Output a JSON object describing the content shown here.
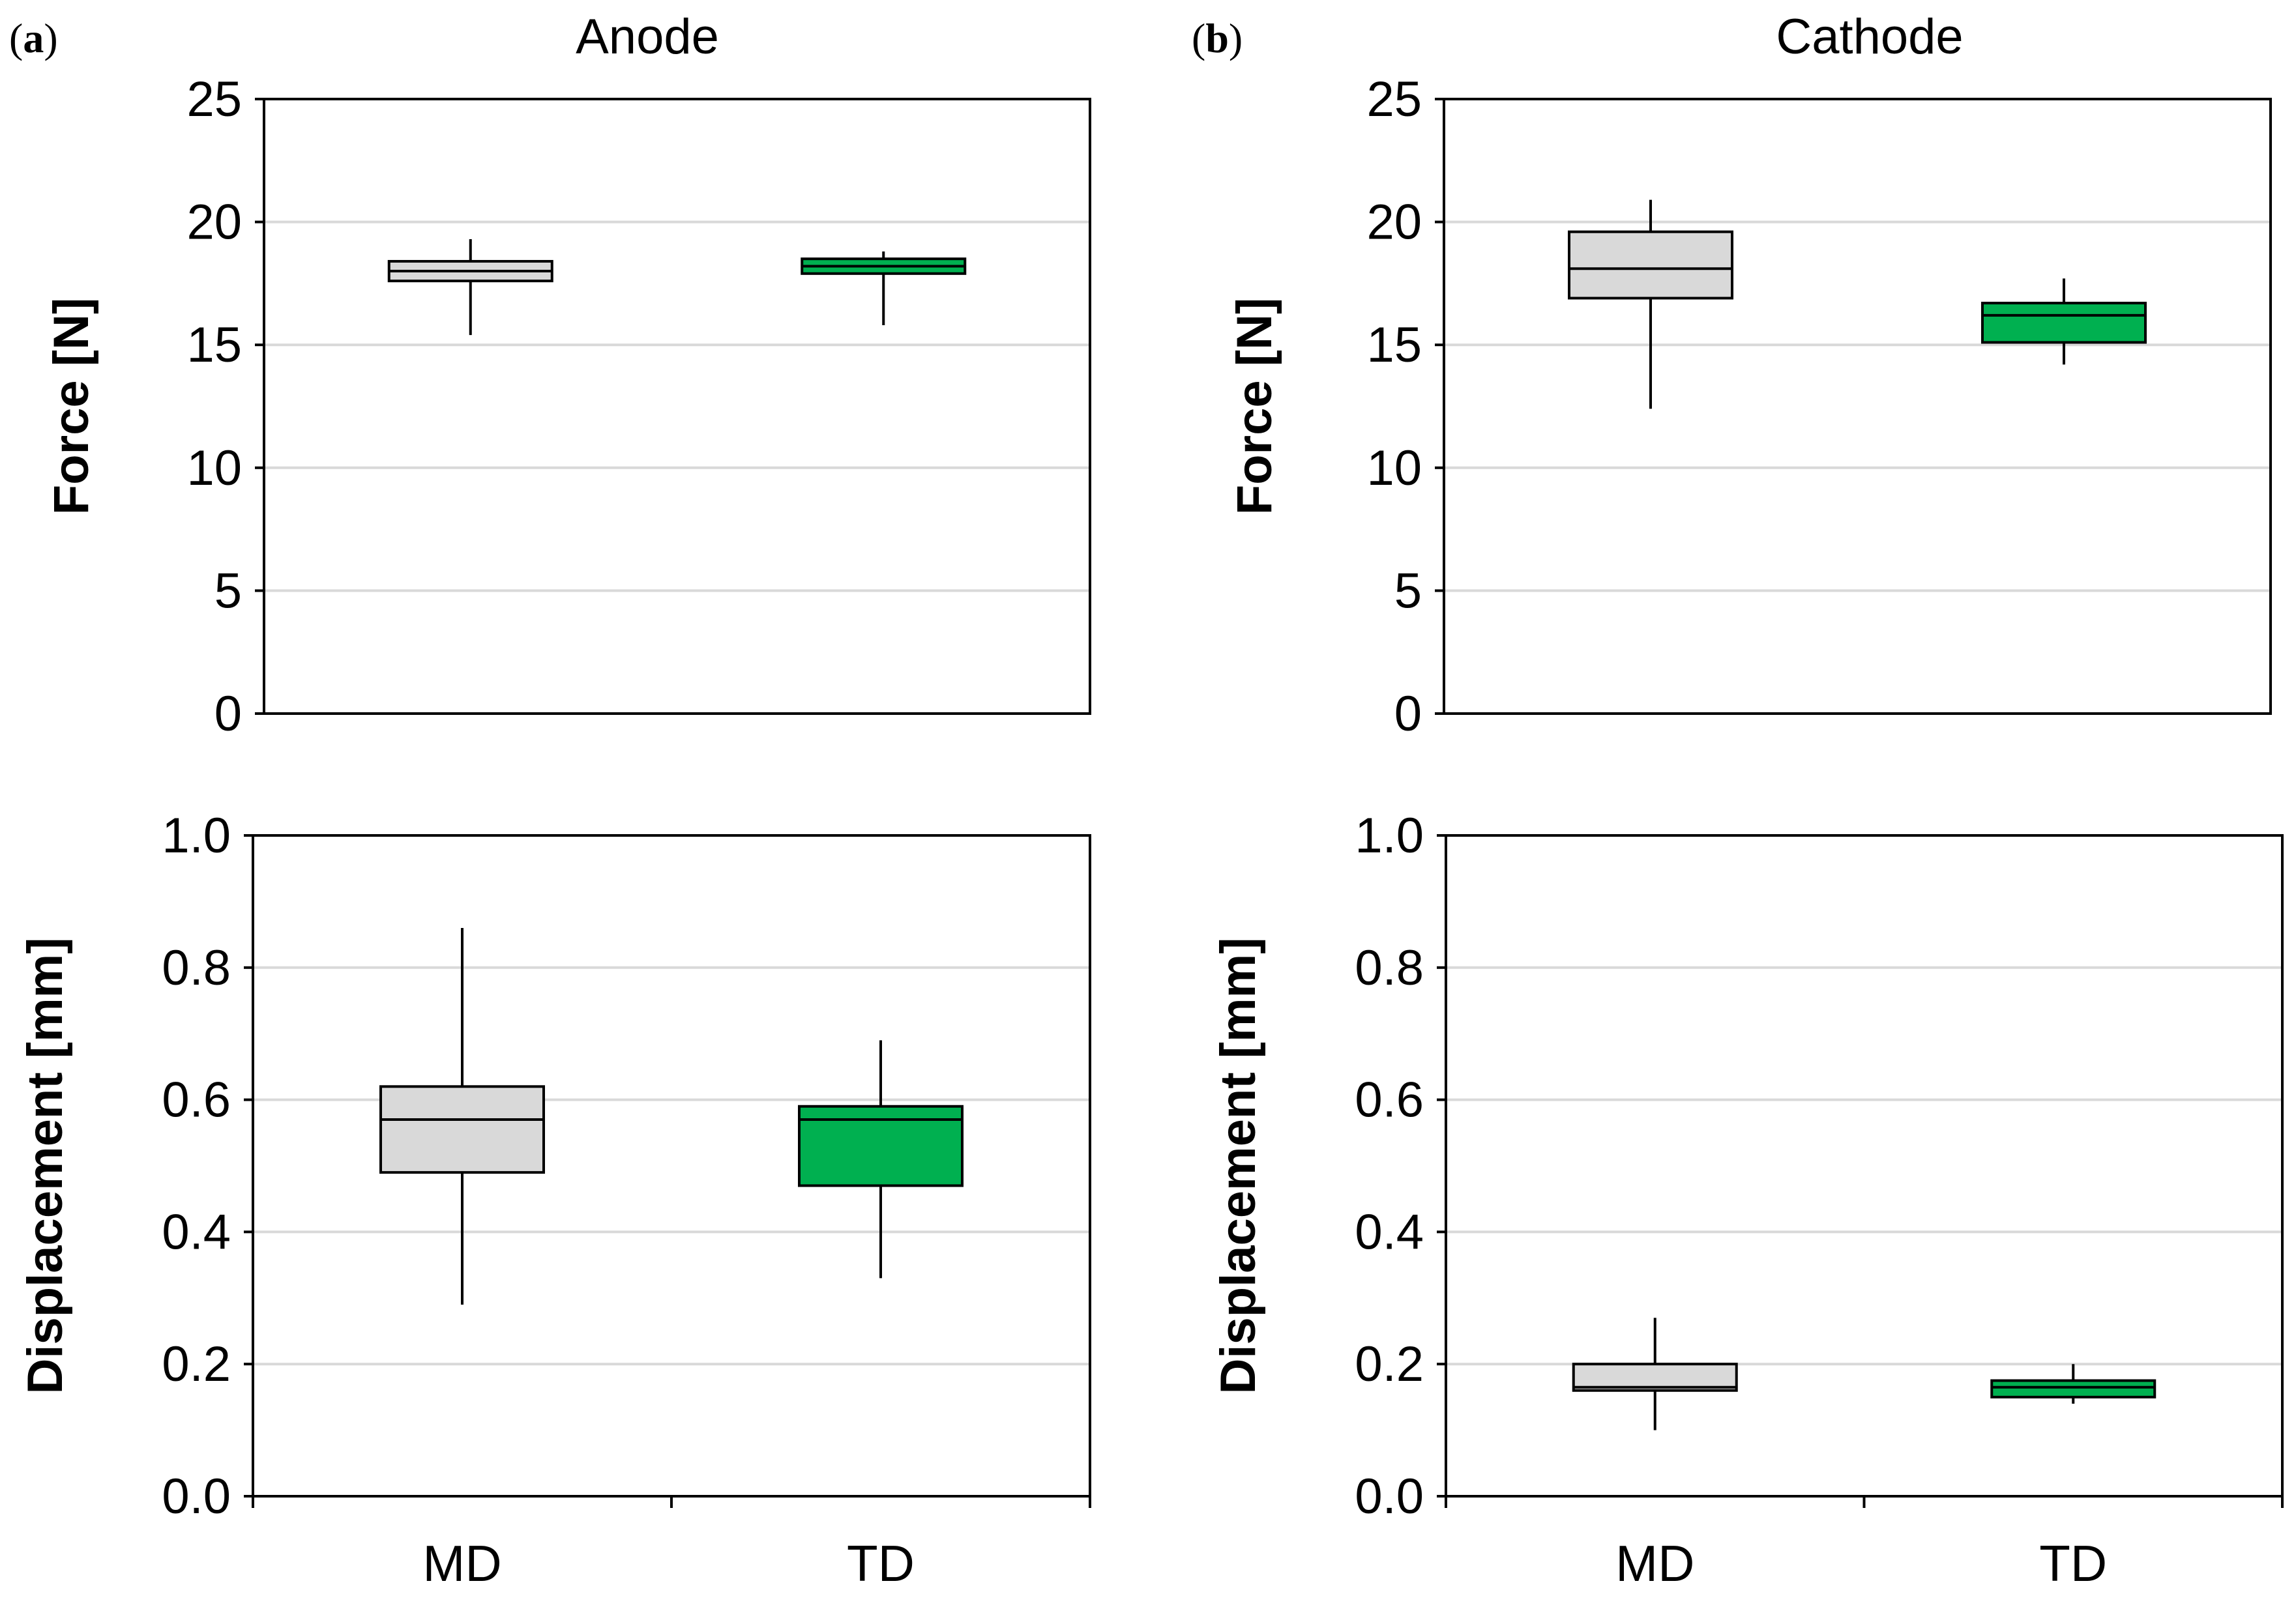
{
  "panels": [
    {
      "letter": "a",
      "title": "Anode"
    },
    {
      "letter": "b",
      "title": "Cathode"
    }
  ],
  "colors": {
    "MD": "#d9d9d9",
    "TD": "#00b050",
    "grid": "#d9d9d9",
    "axis": "#000000"
  },
  "chart_data": [
    {
      "type": "box",
      "id": "anode-force",
      "panel": "a",
      "title": "Anode",
      "xlabel": "",
      "ylabel": "Force [N]",
      "ylim": [
        0,
        25
      ],
      "yticks": [
        0,
        5,
        10,
        15,
        20,
        25
      ],
      "ytick_labels": [
        "0",
        "5",
        "10",
        "15",
        "20",
        "25"
      ],
      "grid": true,
      "categories": [
        "MD",
        "TD"
      ],
      "show_category_labels": false,
      "boxes": [
        {
          "category": "MD",
          "min": 15.4,
          "q1": 17.6,
          "median": 18.0,
          "q3": 18.4,
          "max": 19.3,
          "color": "#d9d9d9"
        },
        {
          "category": "TD",
          "min": 15.8,
          "q1": 17.9,
          "median": 18.2,
          "q3": 18.5,
          "max": 18.8,
          "color": "#00b050"
        }
      ]
    },
    {
      "type": "box",
      "id": "cathode-force",
      "panel": "b",
      "title": "Cathode",
      "xlabel": "",
      "ylabel": "Force [N]",
      "ylim": [
        0,
        25
      ],
      "yticks": [
        0,
        5,
        10,
        15,
        20,
        25
      ],
      "ytick_labels": [
        "0",
        "5",
        "10",
        "15",
        "20",
        "25"
      ],
      "grid": true,
      "categories": [
        "MD",
        "TD"
      ],
      "show_category_labels": false,
      "boxes": [
        {
          "category": "MD",
          "min": 12.4,
          "q1": 16.9,
          "median": 18.1,
          "q3": 19.6,
          "max": 20.9,
          "color": "#d9d9d9"
        },
        {
          "category": "TD",
          "min": 14.2,
          "q1": 15.1,
          "median": 16.2,
          "q3": 16.7,
          "max": 17.7,
          "color": "#00b050"
        }
      ]
    },
    {
      "type": "box",
      "id": "anode-displacement",
      "panel": "a",
      "xlabel": "",
      "ylabel": "Displacement [mm]",
      "ylim": [
        0,
        1.0
      ],
      "yticks": [
        0,
        0.2,
        0.4,
        0.6,
        0.8,
        1.0
      ],
      "ytick_labels": [
        "0.0",
        "0.2",
        "0.4",
        "0.6",
        "0.8",
        "1.0"
      ],
      "grid": true,
      "categories": [
        "MD",
        "TD"
      ],
      "show_category_labels": true,
      "boxes": [
        {
          "category": "MD",
          "min": 0.29,
          "q1": 0.49,
          "median": 0.57,
          "q3": 0.62,
          "max": 0.86,
          "color": "#d9d9d9"
        },
        {
          "category": "TD",
          "min": 0.33,
          "q1": 0.47,
          "median": 0.57,
          "q3": 0.59,
          "max": 0.69,
          "color": "#00b050"
        }
      ]
    },
    {
      "type": "box",
      "id": "cathode-displacement",
      "panel": "b",
      "xlabel": "",
      "ylabel": "Displacement [mm]",
      "ylim": [
        0,
        1.0
      ],
      "yticks": [
        0,
        0.2,
        0.4,
        0.6,
        0.8,
        1.0
      ],
      "ytick_labels": [
        "0.0",
        "0.2",
        "0.4",
        "0.6",
        "0.8",
        "1.0"
      ],
      "grid": true,
      "categories": [
        "MD",
        "TD"
      ],
      "show_category_labels": true,
      "boxes": [
        {
          "category": "MD",
          "min": 0.1,
          "q1": 0.16,
          "median": 0.165,
          "q3": 0.2,
          "max": 0.27,
          "color": "#d9d9d9"
        },
        {
          "category": "TD",
          "min": 0.14,
          "q1": 0.15,
          "median": 0.165,
          "q3": 0.175,
          "max": 0.2,
          "color": "#00b050"
        }
      ]
    }
  ]
}
